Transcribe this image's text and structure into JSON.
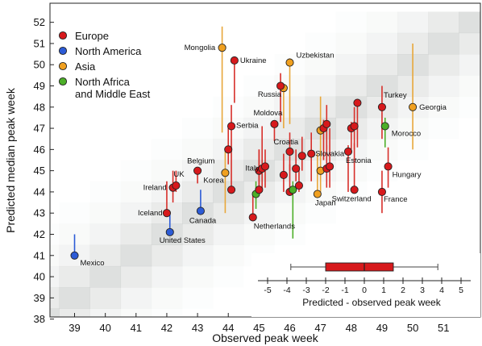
{
  "chart_data": {
    "type": "scatter",
    "xlabel": "Observed peak week",
    "ylabel": "Predicted median peak week",
    "xlim": [
      38.2,
      52.2
    ],
    "ylim": [
      38.1,
      52.9
    ],
    "xticks": [
      "39",
      "40",
      "41",
      "42",
      "43",
      "44",
      "45",
      "46",
      "47",
      "48",
      "49",
      "50",
      "51"
    ],
    "yticks": [
      "38",
      "39",
      "40",
      "41",
      "42",
      "43",
      "44",
      "45",
      "46",
      "47",
      "48",
      "49",
      "50",
      "51",
      "52"
    ],
    "background": "diagonal density shading (grey)",
    "legend": {
      "position": "top-left",
      "entries": [
        {
          "key": "europe",
          "label": "Europe",
          "color": "#d7191c"
        },
        {
          "key": "na",
          "label": "North America",
          "color": "#2c5bd6"
        },
        {
          "key": "asia",
          "label": "Asia",
          "color": "#f0a020"
        },
        {
          "key": "nafme",
          "label": "North Africa",
          "label2": "and Middle East",
          "color": "#4caf28"
        }
      ]
    },
    "colors": {
      "europe": "#d7191c",
      "na": "#2c5bd6",
      "asia": "#f0a020",
      "nafme": "#4caf28",
      "europe_bar": "#d72f2a",
      "asia_bar": "#e8a73a"
    },
    "points": [
      {
        "label": "Mexico",
        "region": "na",
        "x": 39.0,
        "y": 41.0,
        "lo": 41.0,
        "hi": 42.0
      },
      {
        "label": "United States",
        "region": "na",
        "x": 42.1,
        "y": 42.1,
        "lo": 42.1,
        "hi": 43.0
      },
      {
        "label": "Canada",
        "region": "na",
        "x": 43.1,
        "y": 43.1,
        "lo": 43.1,
        "hi": 44.1
      },
      {
        "label": "Iceland",
        "region": "europe",
        "x": 42.0,
        "y": 43.0,
        "lo": 43.0,
        "hi": 44.5
      },
      {
        "label": "Ireland",
        "region": "europe",
        "x": 42.2,
        "y": 44.2,
        "lo": 43.5,
        "hi": 45.0
      },
      {
        "label": "UK",
        "region": "europe",
        "x": 42.3,
        "y": 44.3,
        "lo": 44.0,
        "hi": 45.0
      },
      {
        "label": "Belgium",
        "region": "europe",
        "x": 43.0,
        "y": 45.0,
        "lo": 44.4,
        "hi": 45.0
      },
      {
        "label": "Korea",
        "region": "asia",
        "x": 43.9,
        "y": 44.9,
        "lo": 43.0,
        "hi": 45.9
      },
      {
        "label": "",
        "region": "europe",
        "x": 44.1,
        "y": 44.1,
        "lo": 44.1,
        "hi": 46.0
      },
      {
        "label": "",
        "region": "europe",
        "x": 44.0,
        "y": 46.0,
        "lo": 45.3,
        "hi": 47.0
      },
      {
        "label": "Serbia",
        "region": "europe",
        "x": 44.1,
        "y": 47.1,
        "lo": 46.0,
        "hi": 48.1
      },
      {
        "label": "Mongolia",
        "region": "asia",
        "x": 43.8,
        "y": 50.8,
        "lo": 46.8,
        "hi": 51.8
      },
      {
        "label": "Ukraine",
        "region": "europe",
        "x": 44.2,
        "y": 50.2,
        "lo": 48.2,
        "hi": 50.2
      },
      {
        "label": "Netherlands",
        "region": "europe",
        "x": 44.8,
        "y": 42.8,
        "lo": 42.8,
        "hi": 44.0
      },
      {
        "label": "",
        "region": "nafme",
        "x": 44.9,
        "y": 43.9,
        "lo": 43.2,
        "hi": 44.5
      },
      {
        "label": "",
        "region": "europe",
        "x": 45.0,
        "y": 44.1,
        "lo": 44.1,
        "hi": 46.0
      },
      {
        "label": "Italy",
        "region": "europe",
        "x": 45.0,
        "y": 45.0,
        "lo": 44.0,
        "hi": 46.0
      },
      {
        "label": "",
        "region": "europe",
        "x": 45.1,
        "y": 45.1,
        "lo": 44.0,
        "hi": 47.1
      },
      {
        "label": "",
        "region": "europe",
        "x": 45.2,
        "y": 45.2,
        "lo": 44.2,
        "hi": 46.0
      },
      {
        "label": "Moldova",
        "region": "europe",
        "x": 45.5,
        "y": 47.2,
        "lo": 46.4,
        "hi": 47.2
      },
      {
        "label": "Russia",
        "region": "asia",
        "x": 45.8,
        "y": 48.9,
        "lo": 47.0,
        "hi": 48.9
      },
      {
        "label": "",
        "region": "europe",
        "x": 45.7,
        "y": 49.0,
        "lo": 47.3,
        "hi": 49.6
      },
      {
        "label": "Uzbekistan",
        "region": "asia",
        "x": 46.0,
        "y": 50.1,
        "lo": 47.2,
        "hi": 50.3
      },
      {
        "label": "Croatia",
        "region": "europe",
        "x": 46.0,
        "y": 45.9,
        "lo": 45.0,
        "hi": 46.8
      },
      {
        "label": "",
        "region": "europe",
        "x": 45.8,
        "y": 44.8,
        "lo": 44.0,
        "hi": 45.8
      },
      {
        "label": "",
        "region": "europe",
        "x": 46.0,
        "y": 44.0,
        "lo": 44.0,
        "hi": 45.3
      },
      {
        "label": "",
        "region": "nafme",
        "x": 46.1,
        "y": 44.1,
        "lo": 41.8,
        "hi": 44.5
      },
      {
        "label": "",
        "region": "europe",
        "x": 46.2,
        "y": 45.1,
        "lo": 44.5,
        "hi": 46.0
      },
      {
        "label": "",
        "region": "europe",
        "x": 46.3,
        "y": 44.3,
        "lo": 44.0,
        "hi": 45.2
      },
      {
        "label": "",
        "region": "europe",
        "x": 46.4,
        "y": 45.7,
        "lo": 45.0,
        "hi": 46.6
      },
      {
        "label": "Slovakia",
        "region": "europe",
        "x": 46.7,
        "y": 45.8,
        "lo": 44.5,
        "hi": 46.8
      },
      {
        "label": "",
        "region": "asia",
        "x": 47.0,
        "y": 46.9,
        "lo": 45.9,
        "hi": 48.5
      },
      {
        "label": "",
        "region": "europe",
        "x": 47.1,
        "y": 47.0,
        "lo": 45.5,
        "hi": 47.4
      },
      {
        "label": "",
        "region": "europe",
        "x": 47.2,
        "y": 47.2,
        "lo": 46.0,
        "hi": 48.1
      },
      {
        "label": "",
        "region": "asia",
        "x": 47.0,
        "y": 45.0,
        "lo": 44.0,
        "hi": 46.0
      },
      {
        "label": "",
        "region": "europe",
        "x": 47.2,
        "y": 45.1,
        "lo": 44.2,
        "hi": 46.2
      },
      {
        "label": "",
        "region": "europe",
        "x": 47.3,
        "y": 45.2,
        "lo": 44.2,
        "hi": 47.0
      },
      {
        "label": "Japan",
        "region": "asia",
        "x": 46.9,
        "y": 43.9,
        "lo": 43.9,
        "hi": 45.8
      },
      {
        "label": "Estonia",
        "region": "europe",
        "x": 47.9,
        "y": 45.9,
        "lo": 44.0,
        "hi": 46.2
      },
      {
        "label": "",
        "region": "europe",
        "x": 48.0,
        "y": 47.0,
        "lo": 46.0,
        "hi": 47.3
      },
      {
        "label": "",
        "region": "europe",
        "x": 48.1,
        "y": 47.1,
        "lo": 46.0,
        "hi": 48.0
      },
      {
        "label": "",
        "region": "europe",
        "x": 48.2,
        "y": 48.2,
        "lo": 46.1,
        "hi": 48.2
      },
      {
        "label": "Switzerland",
        "region": "europe",
        "x": 48.1,
        "y": 44.1,
        "lo": 44.1,
        "hi": 46.3
      },
      {
        "label": "Turkey",
        "region": "europe",
        "x": 49.0,
        "y": 48.0,
        "lo": 46.5,
        "hi": 49.0
      },
      {
        "label": "Morocco",
        "region": "nafme",
        "x": 49.1,
        "y": 47.1,
        "lo": 46.1,
        "hi": 47.5
      },
      {
        "label": "Hungary",
        "region": "europe",
        "x": 49.2,
        "y": 45.2,
        "lo": 44.2,
        "hi": 46.1
      },
      {
        "label": "France",
        "region": "europe",
        "x": 49.0,
        "y": 44.0,
        "lo": 43.0,
        "hi": 45.0
      },
      {
        "label": "Georgia",
        "region": "asia",
        "x": 50.0,
        "y": 48.0,
        "lo": 46.0,
        "hi": 51.0
      }
    ],
    "inset": {
      "type": "boxplot",
      "xlabel": "Predicted - observed peak week",
      "xticks": [
        "-5",
        "-4",
        "-3",
        "-2",
        "-1",
        "0",
        "1",
        "2",
        "3",
        "4",
        "5"
      ],
      "xlim": [
        -5.5,
        5.5
      ],
      "min": -3.8,
      "q1": -2.0,
      "median": 0.0,
      "q3": 1.5,
      "max": 3.8
    }
  }
}
